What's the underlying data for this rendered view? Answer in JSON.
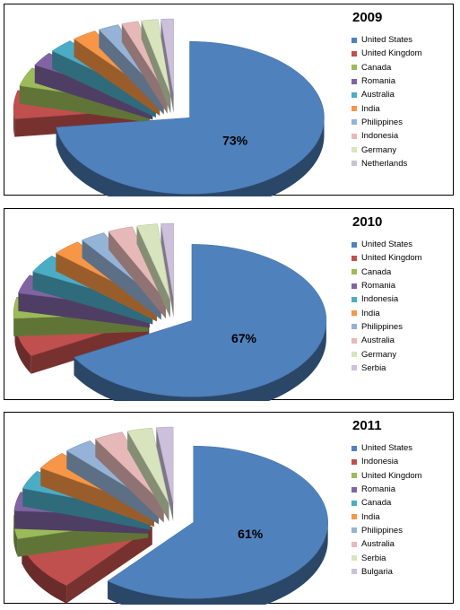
{
  "palette": [
    "#4F81BD",
    "#C0504D",
    "#9BBB59",
    "#8064A2",
    "#4BACC6",
    "#F79646",
    "#95B3D7",
    "#E6B9B8",
    "#D7E4BD",
    "#CCC0DA"
  ],
  "chart_data": [
    {
      "type": "pie",
      "title": "2009",
      "categories": [
        "United States",
        "United Kingdom",
        "Canada",
        "Romania",
        "Australia",
        "India",
        "Philippines",
        "Indonesia",
        "Germany",
        "Netherlands"
      ],
      "values": [
        73,
        6,
        4,
        3,
        3,
        3,
        2.5,
        2,
        2,
        1.5
      ],
      "data_labels": [
        "73%"
      ],
      "legend_position": "right"
    },
    {
      "type": "pie",
      "title": "2010",
      "categories": [
        "United States",
        "United Kingdom",
        "Canada",
        "Romania",
        "Indonesia",
        "India",
        "Philippines",
        "Australia",
        "Germany",
        "Serbia"
      ],
      "values": [
        67,
        7,
        4.5,
        4,
        4,
        3.5,
        3,
        3,
        2.5,
        1.5
      ],
      "data_labels": [
        "67%"
      ],
      "legend_position": "right"
    },
    {
      "type": "pie",
      "title": "2011",
      "categories": [
        "United States",
        "Indonesia",
        "United Kingdom",
        "Romania",
        "Canada",
        "India",
        "Philippines",
        "Australia",
        "Serbia",
        "Bulgaria"
      ],
      "values": [
        61,
        10,
        5,
        4,
        4,
        4,
        3.5,
        3.5,
        3,
        2
      ],
      "data_labels": [
        "61%"
      ],
      "legend_position": "right"
    }
  ]
}
